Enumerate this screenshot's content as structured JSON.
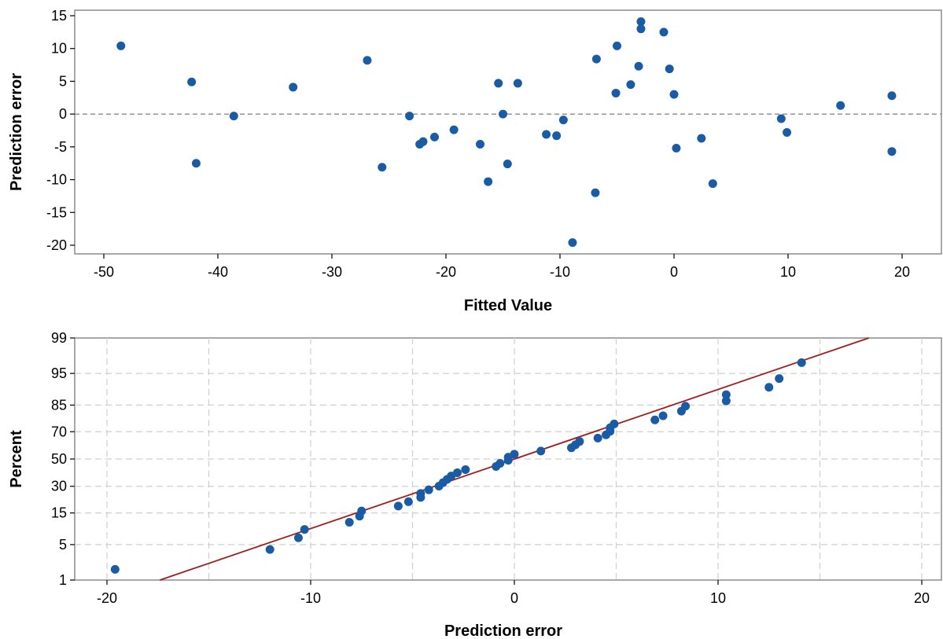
{
  "chart_data": [
    {
      "type": "scatter",
      "title": "",
      "xlabel": "Fitted Value",
      "ylabel": "Prediction error",
      "xlim": [
        -53,
        24
      ],
      "ylim": [
        -21,
        16
      ],
      "xticks": [
        -50,
        -40,
        -30,
        -20,
        -10,
        0,
        10,
        20
      ],
      "yticks": [
        15,
        10,
        5,
        0,
        -5,
        -10,
        -15,
        -20
      ],
      "reference_line": {
        "y": 0,
        "style": "dashed"
      },
      "grid": false,
      "colors": {
        "marker": "#1a5ba6"
      },
      "points": [
        {
          "x": -48.5,
          "y": 10.4
        },
        {
          "x": -42.3,
          "y": 4.9
        },
        {
          "x": -41.9,
          "y": -7.5
        },
        {
          "x": -38.6,
          "y": -0.3
        },
        {
          "x": -33.4,
          "y": 4.1
        },
        {
          "x": -26.9,
          "y": 8.2
        },
        {
          "x": -25.6,
          "y": -8.1
        },
        {
          "x": -23.2,
          "y": -0.3
        },
        {
          "x": -22.3,
          "y": -4.6
        },
        {
          "x": -22.0,
          "y": -4.2
        },
        {
          "x": -21.0,
          "y": -3.5
        },
        {
          "x": -19.3,
          "y": -2.4
        },
        {
          "x": -17.0,
          "y": -4.6
        },
        {
          "x": -16.3,
          "y": -10.3
        },
        {
          "x": -15.4,
          "y": 4.7
        },
        {
          "x": -15.0,
          "y": 0.0
        },
        {
          "x": -14.6,
          "y": -7.6
        },
        {
          "x": -13.7,
          "y": 4.7
        },
        {
          "x": -11.2,
          "y": -3.1
        },
        {
          "x": -10.3,
          "y": -3.3
        },
        {
          "x": -9.7,
          "y": -0.9
        },
        {
          "x": -8.9,
          "y": -19.6
        },
        {
          "x": -6.9,
          "y": -12.0
        },
        {
          "x": -6.8,
          "y": 8.4
        },
        {
          "x": -5.1,
          "y": 3.2
        },
        {
          "x": -5.0,
          "y": 10.4
        },
        {
          "x": -3.8,
          "y": 4.5
        },
        {
          "x": -3.1,
          "y": 7.3
        },
        {
          "x": -2.9,
          "y": 14.1
        },
        {
          "x": -2.9,
          "y": 13.0
        },
        {
          "x": -0.9,
          "y": 12.5
        },
        {
          "x": -0.4,
          "y": 6.9
        },
        {
          "x": 0.0,
          "y": 3.0
        },
        {
          "x": 0.2,
          "y": -5.2
        },
        {
          "x": 2.4,
          "y": -3.7
        },
        {
          "x": 3.4,
          "y": -10.6
        },
        {
          "x": 9.4,
          "y": -0.7
        },
        {
          "x": 9.9,
          "y": -2.8
        },
        {
          "x": 14.6,
          "y": 1.3
        },
        {
          "x": 19.1,
          "y": 2.8
        },
        {
          "x": 19.1,
          "y": -5.7
        }
      ]
    },
    {
      "type": "scatter",
      "subtype": "normal-probability-plot",
      "title": "",
      "xlabel": "Prediction error",
      "ylabel": "Percent",
      "xlim": [
        -22,
        21
      ],
      "ylim_percent": [
        1,
        99
      ],
      "xticks": [
        -20,
        -10,
        0,
        10,
        20
      ],
      "yticks": [
        99,
        95,
        85,
        70,
        50,
        30,
        15,
        5,
        1
      ],
      "y_scale": "normal-probability",
      "grid": true,
      "fit_line": {
        "x": [
          -17.4,
          17.4
        ],
        "y": [
          1,
          99
        ]
      },
      "colors": {
        "marker": "#1a5ba6",
        "fit_line": "#a31b1b",
        "grid": "#cfcfcf"
      },
      "points": [
        {
          "x": -19.6,
          "y": 1.7
        },
        {
          "x": -12.0,
          "y": 4.1
        },
        {
          "x": -10.6,
          "y": 6.5
        },
        {
          "x": -10.3,
          "y": 8.8
        },
        {
          "x": -8.1,
          "y": 11.2
        },
        {
          "x": -7.6,
          "y": 13.6
        },
        {
          "x": -7.5,
          "y": 15.9
        },
        {
          "x": -5.7,
          "y": 18.3
        },
        {
          "x": -5.2,
          "y": 20.6
        },
        {
          "x": -4.6,
          "y": 23.0
        },
        {
          "x": -4.6,
          "y": 25.4
        },
        {
          "x": -4.2,
          "y": 27.7
        },
        {
          "x": -3.7,
          "y": 30.1
        },
        {
          "x": -3.5,
          "y": 32.5
        },
        {
          "x": -3.3,
          "y": 34.8
        },
        {
          "x": -3.1,
          "y": 37.2
        },
        {
          "x": -2.8,
          "y": 39.6
        },
        {
          "x": -2.4,
          "y": 41.9
        },
        {
          "x": -0.9,
          "y": 44.3
        },
        {
          "x": -0.7,
          "y": 46.7
        },
        {
          "x": -0.3,
          "y": 49.0
        },
        {
          "x": -0.3,
          "y": 51.4
        },
        {
          "x": 0.0,
          "y": 53.7
        },
        {
          "x": 1.3,
          "y": 56.1
        },
        {
          "x": 2.8,
          "y": 58.5
        },
        {
          "x": 3.0,
          "y": 60.8
        },
        {
          "x": 3.2,
          "y": 63.2
        },
        {
          "x": 4.1,
          "y": 65.6
        },
        {
          "x": 4.5,
          "y": 67.9
        },
        {
          "x": 4.7,
          "y": 70.3
        },
        {
          "x": 4.7,
          "y": 72.6
        },
        {
          "x": 4.9,
          "y": 75.0
        },
        {
          "x": 6.9,
          "y": 77.4
        },
        {
          "x": 7.3,
          "y": 79.7
        },
        {
          "x": 8.2,
          "y": 82.1
        },
        {
          "x": 8.4,
          "y": 84.5
        },
        {
          "x": 10.4,
          "y": 86.8
        },
        {
          "x": 10.4,
          "y": 89.2
        },
        {
          "x": 12.5,
          "y": 91.6
        },
        {
          "x": 13.0,
          "y": 93.9
        },
        {
          "x": 14.1,
          "y": 96.8
        }
      ]
    }
  ]
}
